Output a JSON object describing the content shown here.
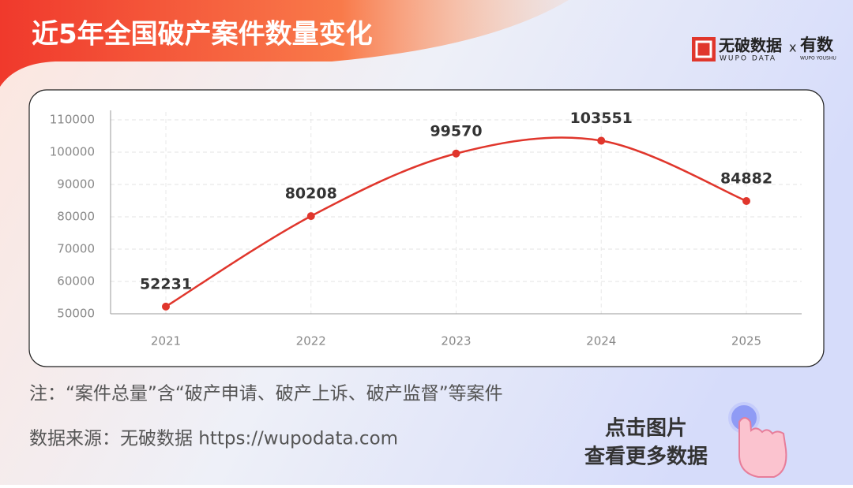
{
  "chart_data": {
    "type": "line",
    "title": "近5年全国破产案件数量变化",
    "categories": [
      "2021",
      "2022",
      "2023",
      "2024",
      "2025"
    ],
    "series": [
      {
        "name": "案件总量",
        "color": "#e0362c",
        "values": [
          52231,
          80208,
          99570,
          103551,
          84882
        ]
      }
    ],
    "ylim": [
      50000,
      110000
    ],
    "yticks": [
      50000,
      60000,
      70000,
      80000,
      90000,
      100000,
      110000
    ],
    "grid": true,
    "smooth": true,
    "data_labels": true,
    "legend": false
  },
  "logo": {
    "brand": "无破数据",
    "brand_en": "WUPO DATA",
    "cross": "x",
    "partner": "有数",
    "partner_en": "WUPO YOUSHU"
  },
  "footer": {
    "note": "注：“案件总量”含“破产申请、破产上诉、破产监督”等案件",
    "source": "数据来源：无破数据 https://wupodata.com"
  },
  "button": {
    "line1": "点击图片",
    "line2": "查看更多数据"
  }
}
